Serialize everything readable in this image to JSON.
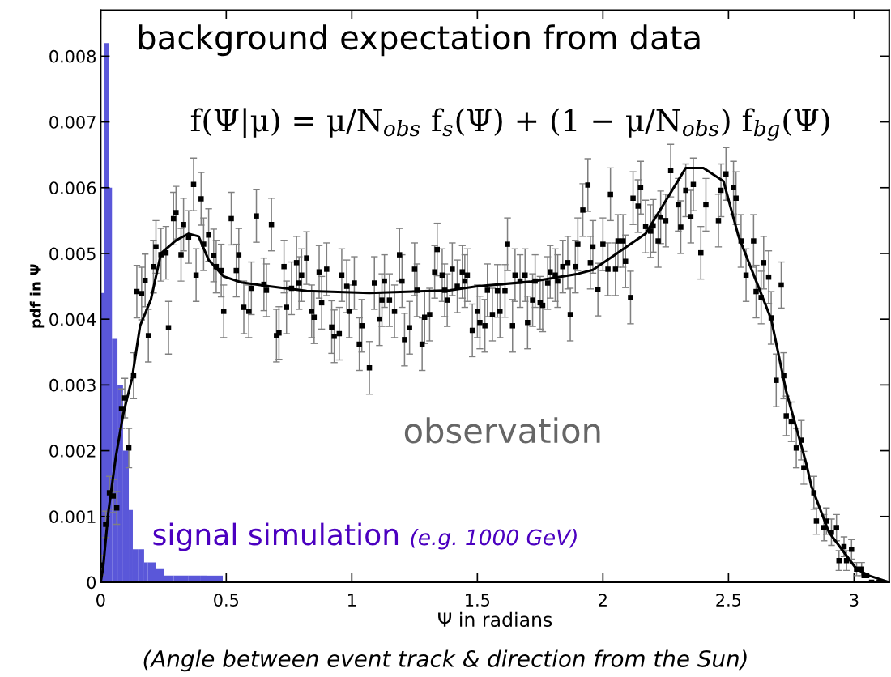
{
  "chart_data": {
    "type": "histogram",
    "xlabel": "Ψ in radians",
    "ylabel": "pdf in Ψ",
    "annotations": [
      "background expectation from data",
      "f(Ψ|μ) = μ/N$_{obs}$ f$_{s}$(Ψ) + (1 − μ/N$_{obs}$) f$_{bg}$(Ψ)",
      "observation",
      "signal simulation",
      "(e.g. 1000 GeV)",
      "(Angle between event track & direction from the Sun)"
    ],
    "xlim": [
      0,
      3.14
    ],
    "ylim": [
      0,
      0.0087
    ],
    "xticks": [
      0,
      0.5,
      1,
      1.5,
      2,
      2.5,
      3
    ],
    "yticks": [
      0,
      0.001,
      0.002,
      0.003,
      0.004,
      0.005,
      0.006,
      0.007,
      0.008
    ],
    "series": [
      {
        "color": "#5a57d9",
        "bins": [
          0,
          0.013,
          0.032,
          0.045,
          0.067,
          0.089,
          0.112,
          0.128,
          0.15,
          0.173,
          0.188,
          0.22,
          0.252,
          0.291,
          0.348,
          0.396,
          0.486
        ],
        "values": [
          0.0044,
          0.0082,
          0.006,
          0.0037,
          0.003,
          0.002,
          0.0011,
          0.0005,
          0.0005,
          0.0003,
          0.0003,
          0.0002,
          0.0001,
          0.0001,
          0.0001,
          0.0001
        ]
      },
      {
        "type": "line",
        "color": "#000000",
        "x": [
          0,
          0.01,
          0.03,
          0.06,
          0.09,
          0.125,
          0.157,
          0.2,
          0.24,
          0.3,
          0.35,
          0.39,
          0.43,
          0.49,
          0.56,
          0.67,
          0.82,
          1.07,
          1.39,
          1.5,
          1.71,
          1.9,
          1.96,
          2.17,
          2.33,
          2.4,
          2.48,
          2.54,
          2.67,
          2.73,
          2.81,
          2.83,
          2.9,
          3.01,
          3.06,
          3.14
        ],
        "values": [
          0,
          0.00023,
          0.00105,
          0.0019,
          0.00256,
          0.0031,
          0.0039,
          0.0043,
          0.005,
          0.0052,
          0.0053,
          0.00526,
          0.0049,
          0.00465,
          0.00456,
          0.0045,
          0.00443,
          0.0044,
          0.00444,
          0.0045,
          0.00457,
          0.00469,
          0.00475,
          0.0053,
          0.0063,
          0.0063,
          0.0061,
          0.00526,
          0.004,
          0.0029,
          0.0018,
          0.00146,
          0.00076,
          0.0002,
          0.0001,
          0
        ]
      },
      {
        "type": "scatter",
        "color": "#000000",
        "marker": "square",
        "x": [
          0.003,
          0.02,
          0.035,
          0.05,
          0.064,
          0.083,
          0.096,
          0.112,
          0.131,
          0.144,
          0.163,
          0.177,
          0.19,
          0.21,
          0.22,
          0.24,
          0.26,
          0.27,
          0.29,
          0.3,
          0.32,
          0.33,
          0.35,
          0.37,
          0.38,
          0.4,
          0.41,
          0.43,
          0.45,
          0.46,
          0.48,
          0.49,
          0.52,
          0.54,
          0.55,
          0.57,
          0.59,
          0.6,
          0.62,
          0.65,
          0.66,
          0.68,
          0.7,
          0.71,
          0.73,
          0.74,
          0.76,
          0.78,
          0.79,
          0.8,
          0.82,
          0.84,
          0.85,
          0.87,
          0.88,
          0.9,
          0.92,
          0.93,
          0.95,
          0.96,
          0.98,
          0.99,
          1.01,
          1.03,
          1.04,
          1.07,
          1.09,
          1.11,
          1.12,
          1.13,
          1.15,
          1.17,
          1.19,
          1.2,
          1.21,
          1.23,
          1.25,
          1.26,
          1.28,
          1.29,
          1.31,
          1.33,
          1.34,
          1.36,
          1.37,
          1.38,
          1.4,
          1.42,
          1.44,
          1.45,
          1.46,
          1.48,
          1.5,
          1.51,
          1.53,
          1.54,
          1.56,
          1.58,
          1.59,
          1.61,
          1.62,
          1.64,
          1.65,
          1.67,
          1.69,
          1.7,
          1.72,
          1.73,
          1.75,
          1.76,
          1.78,
          1.79,
          1.81,
          1.82,
          1.84,
          1.86,
          1.87,
          1.89,
          1.9,
          1.92,
          1.94,
          1.95,
          1.96,
          1.98,
          2.0,
          2.02,
          2.03,
          2.05,
          2.06,
          2.08,
          2.09,
          2.11,
          2.12,
          2.14,
          2.15,
          2.17,
          2.19,
          2.2,
          2.22,
          2.23,
          2.25,
          2.27,
          2.3,
          2.31,
          2.33,
          2.35,
          2.36,
          2.39,
          2.41,
          2.46,
          2.47,
          2.49,
          2.52,
          2.53,
          2.55,
          2.57,
          2.6,
          2.61,
          2.63,
          2.64,
          2.66,
          2.67,
          2.69,
          2.71,
          2.72,
          2.73,
          2.75,
          2.77,
          2.79,
          2.8,
          2.84,
          2.85,
          2.88,
          2.89,
          2.91,
          2.93,
          2.94,
          2.96,
          2.97,
          2.99,
          3.01,
          3.03,
          3.04,
          3.05,
          3.07,
          3.1
        ],
        "values": [
          0.00026,
          0.00088,
          0.00136,
          0.00131,
          0.00113,
          0.00264,
          0.0028,
          0.00204,
          0.00314,
          0.00442,
          0.00439,
          0.00459,
          0.00375,
          0.0048,
          0.0051,
          0.00498,
          0.00501,
          0.00387,
          0.00553,
          0.00562,
          0.00498,
          0.00544,
          0.00525,
          0.00605,
          0.00467,
          0.00583,
          0.00514,
          0.00528,
          0.00497,
          0.0048,
          0.00474,
          0.00412,
          0.00553,
          0.00474,
          0.00498,
          0.00418,
          0.00412,
          0.00447,
          0.00557,
          0.00453,
          0.00444,
          0.00544,
          0.00375,
          0.00379,
          0.0048,
          0.00418,
          0.00447,
          0.00486,
          0.00455,
          0.00467,
          0.00493,
          0.00412,
          0.00403,
          0.00472,
          0.00425,
          0.00476,
          0.00388,
          0.00374,
          0.00378,
          0.00467,
          0.0045,
          0.00412,
          0.00455,
          0.00362,
          0.0039,
          0.00326,
          0.00455,
          0.004,
          0.00429,
          0.00458,
          0.00429,
          0.00412,
          0.00498,
          0.00458,
          0.00369,
          0.00387,
          0.00476,
          0.00444,
          0.00362,
          0.00403,
          0.00407,
          0.00472,
          0.00506,
          0.00467,
          0.00444,
          0.00429,
          0.00476,
          0.0045,
          0.00472,
          0.00458,
          0.00467,
          0.00383,
          0.00412,
          0.00395,
          0.0039,
          0.00444,
          0.00407,
          0.00443,
          0.00412,
          0.00443,
          0.00514,
          0.0039,
          0.00467,
          0.00458,
          0.00467,
          0.00395,
          0.00429,
          0.00458,
          0.00425,
          0.00421,
          0.00455,
          0.00472,
          0.00467,
          0.00458,
          0.0048,
          0.00486,
          0.00407,
          0.0048,
          0.00514,
          0.00566,
          0.00604,
          0.00486,
          0.0051,
          0.00445,
          0.00514,
          0.00476,
          0.0059,
          0.00476,
          0.00519,
          0.00519,
          0.00488,
          0.00433,
          0.00584,
          0.00572,
          0.006,
          0.00541,
          0.00534,
          0.00542,
          0.00519,
          0.00555,
          0.0055,
          0.00626,
          0.00574,
          0.0054,
          0.00596,
          0.00556,
          0.00605,
          0.00501,
          0.00574,
          0.0055,
          0.00596,
          0.00621,
          0.006,
          0.00584,
          0.00519,
          0.00467,
          0.00519,
          0.00442,
          0.00433,
          0.00486,
          0.00464,
          0.00402,
          0.00307,
          0.00452,
          0.00314,
          0.00253,
          0.00244,
          0.00204,
          0.00216,
          0.00174,
          0.00136,
          0.00093,
          0.00083,
          0.00093,
          0.00076,
          0.00083,
          0.00033,
          0.00054,
          0.00033,
          0.0005,
          0.0002,
          0.0002,
          0.0001,
          0.0001,
          0,
          0
        ],
        "errors": [
          0.00015,
          0.0002,
          0.00025,
          0.00025,
          0.00025,
          0.0003,
          0.0003,
          0.0003,
          0.00035,
          0.0004,
          0.0004,
          0.0004,
          0.0004,
          0.0004,
          0.0004,
          0.0004,
          0.0004,
          0.0004,
          0.0004,
          0.0004,
          0.0004,
          0.0004,
          0.0004,
          0.0004,
          0.0004,
          0.0004,
          0.0004,
          0.0004,
          0.0004,
          0.0004,
          0.0004,
          0.0004,
          0.0004,
          0.0004,
          0.0004,
          0.0004,
          0.0004,
          0.0004,
          0.0004,
          0.0004,
          0.0004,
          0.0004,
          0.0004,
          0.0004,
          0.0004,
          0.0004,
          0.0004,
          0.0004,
          0.0004,
          0.0004,
          0.0004,
          0.0004,
          0.0004,
          0.0004,
          0.0004,
          0.0004,
          0.0004,
          0.0004,
          0.0004,
          0.0004,
          0.0004,
          0.0004,
          0.0004,
          0.0004,
          0.0004,
          0.0004,
          0.0004,
          0.0004,
          0.0004,
          0.0004,
          0.0004,
          0.0004,
          0.0004,
          0.0004,
          0.0004,
          0.0004,
          0.0004,
          0.0004,
          0.0004,
          0.0004,
          0.0004,
          0.0004,
          0.0004,
          0.0004,
          0.0004,
          0.0004,
          0.0004,
          0.0004,
          0.0004,
          0.0004,
          0.0004,
          0.0004,
          0.0004,
          0.0004,
          0.0004,
          0.0004,
          0.0004,
          0.0004,
          0.0004,
          0.0004,
          0.0004,
          0.0004,
          0.0004,
          0.0004,
          0.0004,
          0.0004,
          0.0004,
          0.0004,
          0.0004,
          0.0004,
          0.0004,
          0.0004,
          0.0004,
          0.0004,
          0.0004,
          0.0004,
          0.0004,
          0.0004,
          0.0004,
          0.0004,
          0.0004,
          0.0004,
          0.0004,
          0.0004,
          0.0004,
          0.0004,
          0.0004,
          0.0004,
          0.0004,
          0.0004,
          0.0004,
          0.0004,
          0.0004,
          0.0004,
          0.0004,
          0.0004,
          0.0004,
          0.0004,
          0.0004,
          0.0004,
          0.0004,
          0.0004,
          0.0004,
          0.0004,
          0.0004,
          0.0004,
          0.0004,
          0.0004,
          0.0004,
          0.0004,
          0.0004,
          0.0004,
          0.0004,
          0.0004,
          0.0004,
          0.0004,
          0.0004,
          0.0004,
          0.0004,
          0.0004,
          0.0004,
          0.0004,
          0.0004,
          0.00035,
          0.00035,
          0.0003,
          0.0003,
          0.0003,
          0.0003,
          0.00025,
          0.00025,
          0.0002,
          0.0002,
          0.0002,
          0.0002,
          0.0002,
          0.00015,
          0.00015,
          0.00015,
          0.00015,
          0.0001,
          0.0001,
          null,
          null,
          null,
          null
        ]
      }
    ]
  }
}
